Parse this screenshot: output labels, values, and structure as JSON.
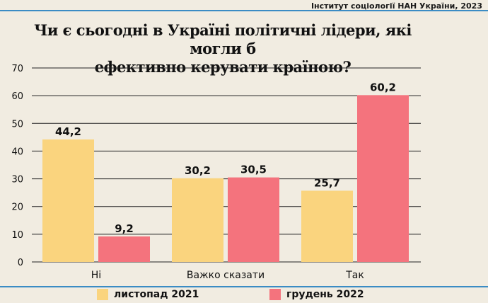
{
  "source": "Інститут соціології НАН України, 2023",
  "chart_data": {
    "type": "bar",
    "title": "Чи є сьогодні в Україні політичні лідери, які могли б ефективно керувати країною?",
    "title_lines": [
      "Чи є сьогодні в Україні політичні лідери, які могли б",
      "ефективно керувати країною?"
    ],
    "categories": [
      "Ні",
      "Важко сказати",
      "Так"
    ],
    "series": [
      {
        "name": "листопад 2021",
        "color": "#fad47e",
        "values": [
          44.2,
          30.2,
          25.7
        ],
        "labels": [
          "44,2",
          "30,2",
          "25,7"
        ]
      },
      {
        "name": "грудень 2022",
        "color": "#f4737d",
        "values": [
          9.2,
          30.5,
          60.2
        ],
        "labels": [
          "9,2",
          "30,5",
          "60,2"
        ]
      }
    ],
    "ylim": [
      0,
      70
    ],
    "yticks": [
      0,
      10,
      20,
      30,
      40,
      50,
      60,
      70
    ],
    "grid": true,
    "legend": "bottom"
  }
}
